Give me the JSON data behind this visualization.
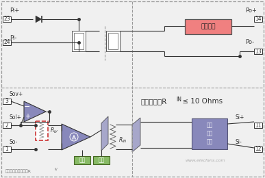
{
  "bg_color": "#f0f0f0",
  "dashed_color": "#999999",
  "line_color": "#333333",
  "regulator_fill": "#f08080",
  "regulator_edge": "#555555",
  "resistor_red_edge": "#cc3333",
  "resistor_red_fill": "#ffffff",
  "input_prot_fill": "#8888bb",
  "input_prot_edge": "#555577",
  "opamp_fill": "#8888bb",
  "bias_fill": "#88bb66",
  "bias_edge": "#446622",
  "transformer_fill": "#ffffff",
  "transformer_edge": "#555555",
  "pin_fill": "#ffffff",
  "pin_edge": "#333333",
  "text_pi_plus": "Pi+",
  "text_pi_minus": "Pi-",
  "text_po_plus": "Po+",
  "text_po_minus": "Po-",
  "text_sov_plus": "Sov+",
  "text_sol_plus": "Sol+",
  "text_so_minus": "So-",
  "text_si_plus": "Si+",
  "text_si_minus": "Si-",
  "text_23": "23",
  "text_24": "24",
  "text_14": "14",
  "text_13": "13",
  "text_3": "3",
  "text_2": "2",
  "text_1": "1",
  "text_11": "11",
  "text_12": "12",
  "text_regulator": "稳压电路",
  "text_input_prot_line1": "输入",
  "text_input_prot_line2": "保护",
  "text_input_prot_line3": "电路",
  "text_RIV": "R",
  "text_RIV_sub": "IV",
  "text_RIN": "R",
  "text_RIN_sub": "IN",
  "text_bias": "偏置",
  "text_gain": "增益",
  "text_impedance": "输入阱抗：R",
  "text_imp_sub": "IN",
  "text_imp_rest": " ≤ 10 Ohms",
  "text_note": "注：电流输出型中无R",
  "text_note_sub": "IV",
  "text_website": "www.elecfans.com",
  "text_minus": "−",
  "text_plus": "+"
}
